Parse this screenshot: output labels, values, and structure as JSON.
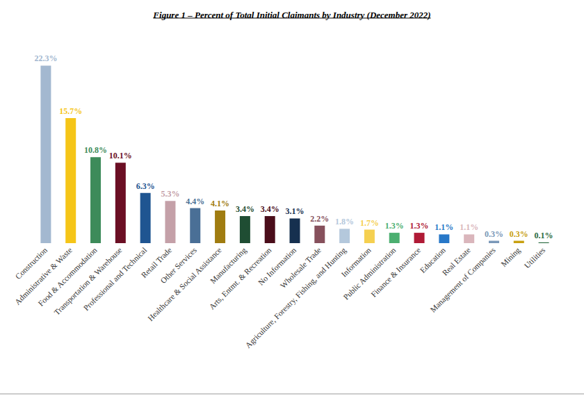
{
  "chart_data": {
    "type": "bar",
    "title": "Figure 1 – Percent of Total Initial Claimants by Industry (December 2022)",
    "categories": [
      "Construction",
      "Administrative & Waste",
      "Food & Accommodation",
      "Transportation & Warehouse",
      "Professional and Technical",
      "Retail Trade",
      "Other Services",
      "Healthcare & Social Assistance",
      "Manufacturing",
      "Arts, Entmt. & Recreation",
      "No Information",
      "Wholesale Trade",
      "Agriculture, Forestry, Fishing, and Hunting",
      "Information",
      "Public Administration",
      "Finance & Insurance",
      "Education",
      "Real Estate",
      "Management of Companies",
      "Mining",
      "Utilities"
    ],
    "values": [
      22.3,
      15.7,
      10.8,
      10.1,
      6.3,
      5.3,
      4.4,
      4.1,
      3.4,
      3.4,
      3.1,
      2.2,
      1.8,
      1.7,
      1.3,
      1.3,
      1.1,
      1.1,
      0.3,
      0.3,
      0.1
    ],
    "value_labels": [
      "22.3%",
      "15.7%",
      "10.8%",
      "10.1%",
      "6.3%",
      "5.3%",
      "4.4%",
      "4.1%",
      "3.4%",
      "3.4%",
      "3.1%",
      "2.2%",
      "1.8%",
      "1.7%",
      "1.3%",
      "1.3%",
      "1.1%",
      "1.1%",
      "0.3%",
      "0.3%",
      "0.1%"
    ],
    "colors": [
      "#a3b8d0",
      "#f5c518",
      "#3d8b5a",
      "#6b0f24",
      "#1f5591",
      "#c4a0a8",
      "#4a6f96",
      "#a07c10",
      "#1f4d33",
      "#4a0d1a",
      "#16304f",
      "#86505c",
      "#b4c8dc",
      "#f5d050",
      "#4caf70",
      "#b01a36",
      "#2878c8",
      "#dab6bc",
      "#7a98b8",
      "#c8a010",
      "#2a6b40"
    ],
    "ylim": [
      0,
      24
    ],
    "data_labels": true,
    "tick_labels": "x",
    "grid": false
  }
}
